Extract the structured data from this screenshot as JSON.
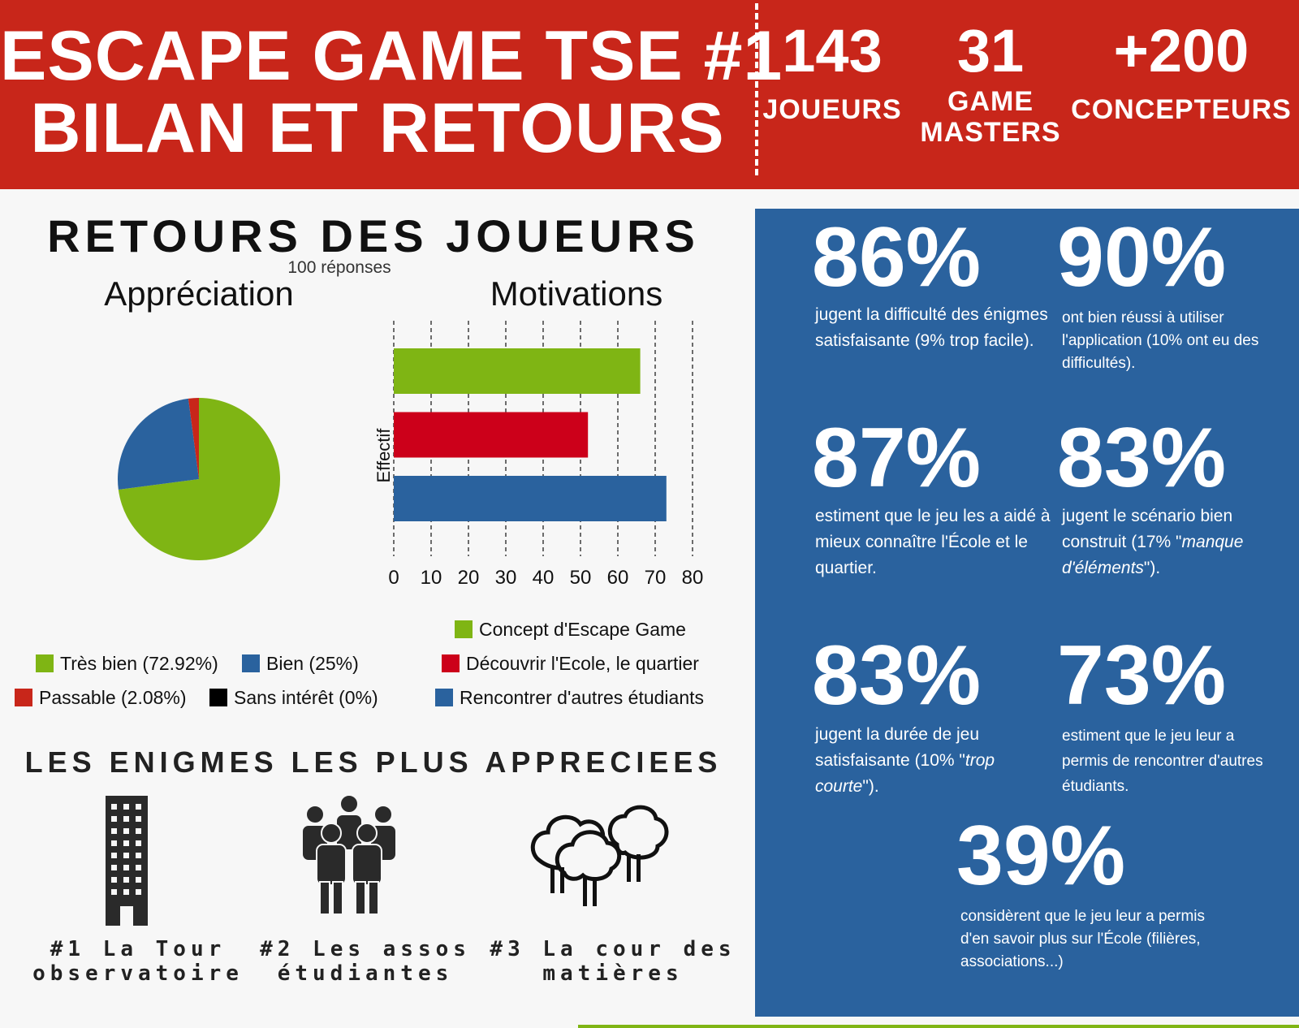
{
  "header": {
    "title_line1": "ESCAPE GAME TSE #1",
    "title_line2": "BILAN ET RETOURS",
    "stats": [
      {
        "value": "143",
        "label": "JOUEURS"
      },
      {
        "value": "31",
        "label": "GAME MASTERS"
      },
      {
        "value": "+200",
        "label": "CONCEPTEURS"
      }
    ]
  },
  "feedback": {
    "title": "RETOURS DES JOUEURS",
    "responses": "100 réponses"
  },
  "chart_data": [
    {
      "type": "pie",
      "title": "Appréciation",
      "categories": [
        "Très bien (72.92%)",
        "Bien (25%)",
        "Passable (2.08%)",
        "Sans intérêt (0%)"
      ],
      "values": [
        72.92,
        25,
        2.08,
        0
      ],
      "colors": [
        "#7fb514",
        "#2a629e",
        "#c8261a",
        "#000000"
      ],
      "legend": "bottom"
    },
    {
      "type": "bar",
      "orientation": "horizontal",
      "title": "Motivations",
      "ylabel": "Effectif",
      "categories": [
        "Concept d'Escape Game",
        "Découvrir l'Ecole, le quartier",
        "Rencontrer d'autres étudiants"
      ],
      "values": [
        66,
        52,
        73
      ],
      "colors": [
        "#7fb514",
        "#cc001a",
        "#2a629e"
      ],
      "xlim": [
        0,
        80
      ],
      "xticks": [
        "0",
        "10",
        "20",
        "30",
        "40",
        "50",
        "60",
        "70",
        "80"
      ],
      "grid": true,
      "legend": "bottom"
    }
  ],
  "enigmes": {
    "title": "LES ENIGMES LES PLUS APPRECIEES",
    "items": [
      {
        "line1": "#1 La Tour",
        "line2": "observatoire",
        "icon": "building-icon"
      },
      {
        "line1": "#2 Les assos",
        "line2": "étudiantes",
        "icon": "group-icon"
      },
      {
        "line1": "#3 La cour des",
        "line2": "matières",
        "icon": "trees-icon"
      }
    ]
  },
  "stats_panel": [
    {
      "pct": "86%",
      "desc": "jugent la difficulté des énigmes satisfaisante (9% trop facile)."
    },
    {
      "pct": "90%",
      "desc": "ont bien réussi à utiliser l'application (10% ont eu des difficultés)."
    },
    {
      "pct": "87%",
      "desc": "estiment que le jeu les a aidé à mieux connaître l'École et le quartier."
    },
    {
      "pct": "83%",
      "desc_pre": "jugent le scénario bien construit (17% \"",
      "desc_em": "manque d'éléments",
      "desc_post": "\")."
    },
    {
      "pct": "83%",
      "desc_pre": "jugent la durée de jeu satisfaisante (10% \"",
      "desc_em": "trop courte",
      "desc_post": "\")."
    },
    {
      "pct": "73%",
      "desc": "estiment que le jeu leur a permis de rencontrer d'autres étudiants."
    },
    {
      "pct": "39%",
      "desc": "considèrent que le jeu leur a permis d'en savoir plus sur l'École (filières, associations...)"
    }
  ]
}
